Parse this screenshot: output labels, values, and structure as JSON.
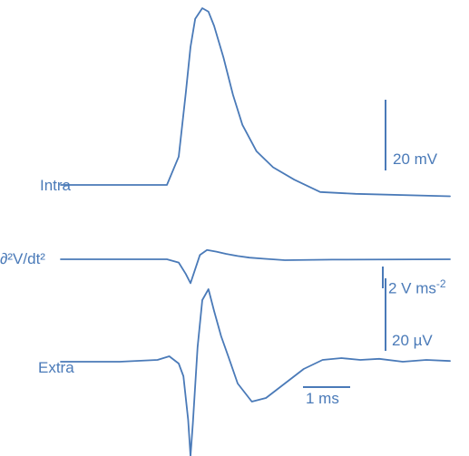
{
  "chart_data": {
    "type": "line",
    "panels": [
      {
        "name": "Intra",
        "label": "Intra",
        "unit": "mV",
        "x_ms": [
          -2.75,
          -0.5,
          -0.25,
          -0.1,
          0.0,
          0.1,
          0.25,
          0.38,
          0.5,
          0.7,
          0.9,
          1.1,
          1.4,
          1.75,
          2.2,
          2.75,
          3.5,
          5.5
        ],
        "values": [
          0.0,
          0.0,
          8.0,
          26.0,
          39.0,
          47.0,
          50.0,
          49.0,
          45.0,
          36.0,
          25.5,
          17.0,
          9.5,
          5.0,
          1.5,
          -2.0,
          -2.5,
          -3.2
        ]
      },
      {
        "name": "d2V/dt2",
        "label": "∂²V/dt²",
        "unit": "V ms⁻²",
        "x_ms": [
          -2.75,
          -0.5,
          -0.25,
          -0.1,
          0.0,
          0.1,
          0.2,
          0.35,
          0.55,
          0.75,
          1.0,
          1.25,
          1.55,
          2.0,
          3.0,
          5.5
        ],
        "values": [
          0.0,
          0.0,
          -0.3,
          -1.35,
          -2.2,
          -0.9,
          0.4,
          0.85,
          0.7,
          0.5,
          0.3,
          0.15,
          0.05,
          -0.08,
          -0.03,
          0.0
        ]
      },
      {
        "name": "Extra",
        "label": "Extra",
        "unit": "µV",
        "x_ms": [
          -2.75,
          -1.5,
          -0.7,
          -0.45,
          -0.25,
          -0.15,
          -0.05,
          0.0,
          0.05,
          0.15,
          0.25,
          0.38,
          0.5,
          0.65,
          0.8,
          1.0,
          1.3,
          1.6,
          2.0,
          2.4,
          2.8,
          3.2,
          3.6,
          4.0,
          4.5,
          5.0,
          5.5
        ],
        "values": [
          0.0,
          0.0,
          0.5,
          1.5,
          -0.5,
          -4.0,
          -16.0,
          -26.0,
          -17.0,
          4.0,
          17.0,
          20.0,
          14.0,
          7.0,
          1.5,
          -6.0,
          -11.0,
          -10.0,
          -6.0,
          -2.0,
          0.5,
          1.0,
          0.5,
          0.8,
          0.0,
          0.5,
          0.2
        ]
      }
    ],
    "scale_bars": {
      "intra": {
        "value": 20,
        "label": "20 mV"
      },
      "d2v": {
        "value": 2,
        "label": "2 V ms",
        "label_exponent": "-2"
      },
      "extra": {
        "value": 20,
        "label": "20 µV"
      },
      "time": {
        "value": 1,
        "label": "1 ms"
      }
    },
    "xlabel": "",
    "ylabel": "",
    "title": ""
  },
  "colors": {
    "trace": "#4a7ab8"
  }
}
